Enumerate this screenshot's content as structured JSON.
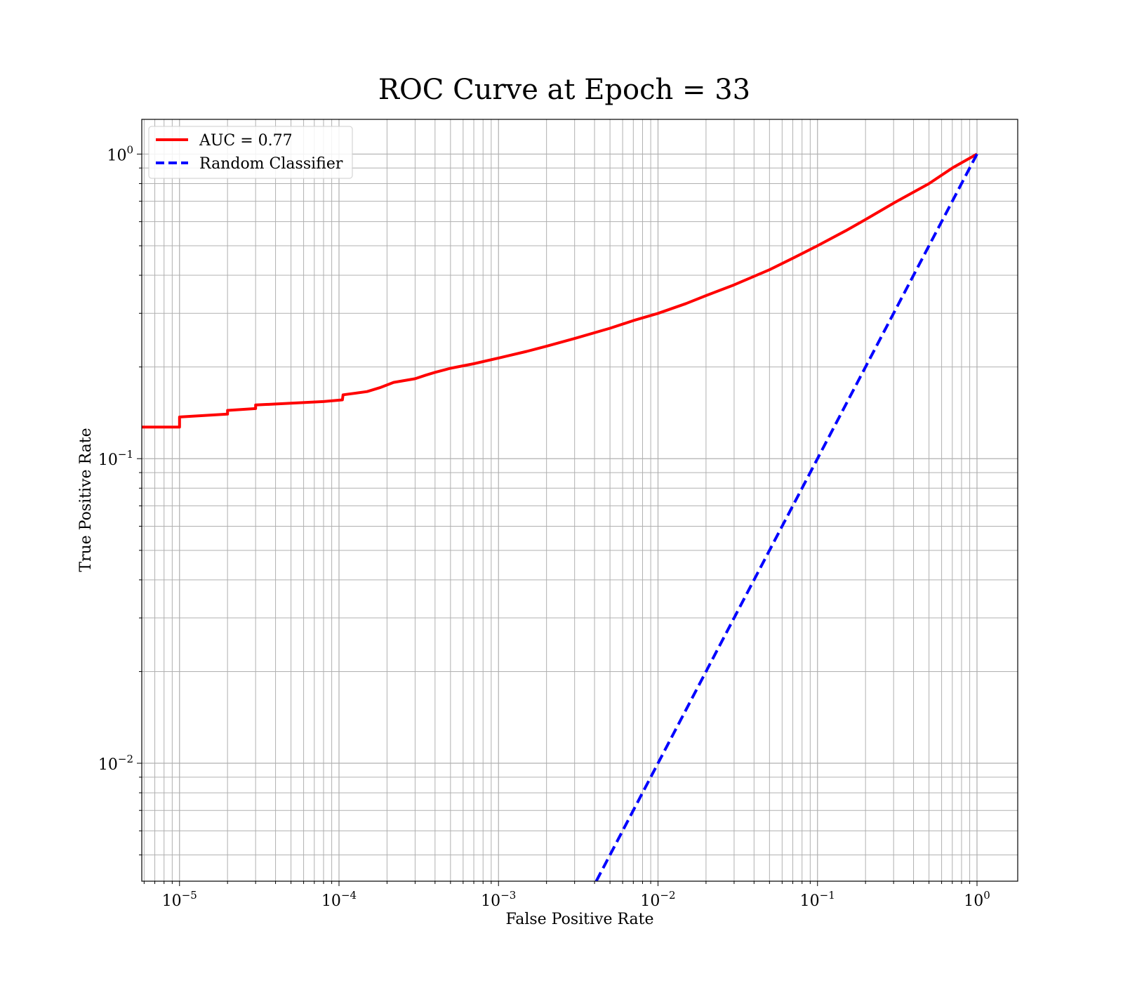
{
  "chart_data": {
    "type": "line",
    "title": "ROC Curve at Epoch = 33",
    "xlabel": "False Positive Rate",
    "ylabel": "True Positive Rate",
    "xscale": "log",
    "yscale": "log",
    "xlim": [
      5.8e-06,
      1.8
    ],
    "ylim": [
      0.0041,
      1.3
    ],
    "grid": "both (major and minor)",
    "legend_position": "top-left",
    "x_ticks": [
      {
        "base": "10",
        "exp": "−5",
        "value": 1e-05
      },
      {
        "base": "10",
        "exp": "−4",
        "value": 0.0001
      },
      {
        "base": "10",
        "exp": "−3",
        "value": 0.001
      },
      {
        "base": "10",
        "exp": "−2",
        "value": 0.01
      },
      {
        "base": "10",
        "exp": "−1",
        "value": 0.1
      },
      {
        "base": "10",
        "exp": "0",
        "value": 1
      }
    ],
    "y_ticks": [
      {
        "base": "10",
        "exp": "−2",
        "value": 0.01
      },
      {
        "base": "10",
        "exp": "−1",
        "value": 0.1
      },
      {
        "base": "10",
        "exp": "0",
        "value": 1
      }
    ],
    "series": [
      {
        "name": "AUC = 0.77",
        "color": "#ff0000",
        "style": "solid",
        "x": [
          5.8e-06,
          1e-05,
          1e-05,
          2e-05,
          2e-05,
          3e-05,
          3e-05,
          5e-05,
          8e-05,
          0.000105,
          0.000106,
          0.00015,
          0.00018,
          0.00022,
          0.0003,
          0.00035,
          0.0004,
          0.0005,
          0.0007,
          0.001,
          0.0015,
          0.002,
          0.003,
          0.005,
          0.007,
          0.01,
          0.015,
          0.02,
          0.03,
          0.05,
          0.07,
          0.1,
          0.15,
          0.2,
          0.3,
          0.5,
          0.7,
          1.0
        ],
        "y": [
          0.127,
          0.127,
          0.137,
          0.14,
          0.144,
          0.146,
          0.15,
          0.152,
          0.154,
          0.156,
          0.162,
          0.166,
          0.171,
          0.178,
          0.183,
          0.188,
          0.192,
          0.198,
          0.205,
          0.214,
          0.225,
          0.234,
          0.248,
          0.268,
          0.284,
          0.3,
          0.323,
          0.343,
          0.372,
          0.417,
          0.455,
          0.5,
          0.56,
          0.61,
          0.69,
          0.8,
          0.9,
          1.0
        ]
      },
      {
        "name": "Random Classifier",
        "color": "#0000ff",
        "style": "dashed",
        "x": [
          0.0041,
          1.0
        ],
        "y": [
          0.0041,
          1.0
        ]
      }
    ]
  }
}
